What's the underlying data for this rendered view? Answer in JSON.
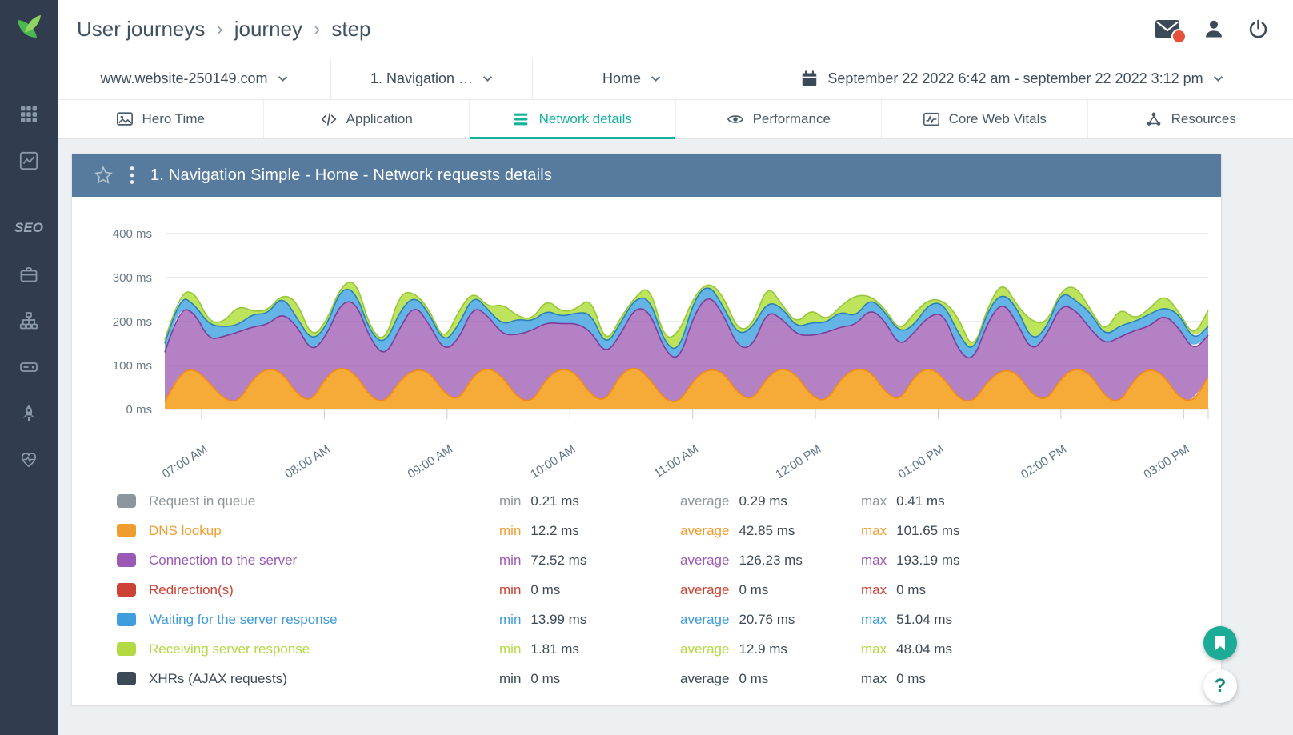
{
  "theme": {
    "accent": "#14b29b",
    "panel_header": "#567b9e",
    "sidebar_bg": "#313d4e",
    "notification": "#e8503a",
    "logo_green_dark": "#4cb851",
    "logo_green_light": "#8fd460"
  },
  "sidebar": {
    "seo_label": "SEO"
  },
  "header": {
    "breadcrumb": [
      "User journeys",
      "journey",
      "step"
    ],
    "separator": "›"
  },
  "filters": {
    "site": "www.website-250149.com",
    "step": "1. Navigation …",
    "page": "Home",
    "date_range": "September 22 2022 6:42 am - september 22 2022 3:12 pm"
  },
  "tabs": [
    {
      "label": "Hero Time",
      "active": false
    },
    {
      "label": "Application",
      "active": false
    },
    {
      "label": "Network details",
      "active": true
    },
    {
      "label": "Performance",
      "active": false
    },
    {
      "label": "Core Web Vitals",
      "active": false
    },
    {
      "label": "Resources",
      "active": false
    }
  ],
  "panel": {
    "title": "1. Navigation Simple - Home - Network requests details"
  },
  "chart_data": {
    "type": "area",
    "stacked": true,
    "title": "1. Navigation Simple - Home - Network requests details",
    "ylim": [
      0,
      400
    ],
    "y_tick_values": [
      0,
      100,
      200,
      300,
      400
    ],
    "y_ticks": [
      "0 ms",
      "100 ms",
      "200 ms",
      "300 ms",
      "400 ms"
    ],
    "x_range_minutes": [
      402,
      912
    ],
    "x_tick_minutes": [
      420,
      480,
      540,
      600,
      660,
      720,
      780,
      840,
      900
    ],
    "x_ticks": [
      "07:00 AM",
      "08:00 AM",
      "09:00 AM",
      "10:00 AM",
      "11:00 AM",
      "12:00 PM",
      "01:00 PM",
      "02:00 PM",
      "03:00 PM"
    ],
    "grid": true,
    "legend_position": "bottom",
    "series": [
      {
        "name": "DNS lookup",
        "color": "#f5a62e",
        "stroke": "#ef8a12",
        "opacity": 0.95,
        "values": [
          18,
          82,
          94,
          62,
          24,
          16,
          70,
          95,
          84,
          34,
          17,
          76,
          98,
          80,
          28,
          15,
          66,
          92,
          86,
          38,
          19,
          78,
          97,
          74,
          26,
          16,
          72,
          95,
          82,
          32,
          18,
          80,
          99,
          70,
          22,
          15,
          68,
          93,
          85,
          36,
          20,
          74,
          96,
          78,
          30,
          17,
          70,
          94,
          88,
          40,
          18,
          76,
          97,
          72,
          24,
          16,
          64,
          91,
          83,
          34,
          19,
          72,
          96,
          80,
          28,
          15,
          70,
          95,
          77,
          26,
          17,
          74
        ]
      },
      {
        "name": "Connection to the server",
        "color": "#a05eb5",
        "stroke": "#7d3c98",
        "opacity": 0.78,
        "values": [
          112,
          150,
          128,
          96,
          142,
          160,
          118,
          98,
          136,
          156,
          112,
          92,
          146,
          166,
          130,
          104,
          120,
          148,
          108,
          94,
          140,
          158,
          116,
          96,
          144,
          164,
          126,
          100,
          114,
          146,
          106,
          90,
          134,
          154,
          112,
          94,
          148,
          170,
          132,
          104,
          122,
          152,
          110,
          92,
          138,
          158,
          118,
          98,
          142,
          162,
          124,
          100,
          116,
          148,
          108,
          92,
          136,
          156,
          114,
          96,
          150,
          168,
          130,
          102,
          120,
          150,
          110,
          94,
          140,
          160,
          115,
          95
        ]
      },
      {
        "name": "Waiting for the server response",
        "color": "#4aa7e4",
        "stroke": "#2980b9",
        "opacity": 0.85,
        "values": [
          20,
          28,
          18,
          35,
          22,
          16,
          30,
          24,
          40,
          18,
          26,
          20,
          34,
          22,
          16,
          28,
          38,
          20,
          24,
          18,
          32,
          26,
          14,
          22,
          36,
          20,
          28,
          16,
          24,
          42,
          18,
          26,
          20,
          30,
          16,
          22,
          34,
          24,
          18,
          28,
          44,
          20,
          26,
          16,
          30,
          22,
          36,
          18,
          24,
          20,
          32,
          16,
          28,
          22,
          40,
          18,
          26,
          20,
          34,
          24,
          16,
          30,
          22,
          38,
          18,
          26,
          20,
          28,
          16,
          32,
          24,
          20
        ]
      },
      {
        "name": "Receiving server response",
        "color": "#b7e04b",
        "stroke": "#94c836",
        "opacity": 0.9,
        "values": [
          8,
          4,
          30,
          6,
          10,
          45,
          5,
          8,
          3,
          38,
          6,
          12,
          4,
          28,
          8,
          5,
          42,
          6,
          10,
          3,
          34,
          8,
          5,
          48,
          6,
          4,
          26,
          10,
          8,
          36,
          5,
          12,
          3,
          30,
          6,
          44,
          8,
          4,
          24,
          10,
          5,
          40,
          6,
          8,
          32,
          4,
          12,
          50,
          5,
          8,
          3,
          28,
          10,
          6,
          38,
          4,
          8,
          26,
          5,
          46,
          10,
          3,
          34,
          6,
          8,
          42,
          4,
          12,
          30,
          5,
          8,
          36
        ]
      }
    ]
  },
  "legend": {
    "min_label": "min",
    "avg_label": "average",
    "max_label": "max",
    "rows": [
      {
        "name": "Request in queue",
        "color": "#8d969c",
        "min": "0.21 ms",
        "average": "0.29 ms",
        "max": "0.41 ms"
      },
      {
        "name": "DNS lookup",
        "color": "#f09d2f",
        "min": "12.2 ms",
        "average": "42.85 ms",
        "max": "101.65 ms"
      },
      {
        "name": "Connection to the server",
        "color": "#9b59b6",
        "min": "72.52 ms",
        "average": "126.23 ms",
        "max": "193.19 ms"
      },
      {
        "name": "Redirection(s)",
        "color": "#cb4335",
        "min": "0 ms",
        "average": "0 ms",
        "max": "0 ms"
      },
      {
        "name": "Waiting for the server response",
        "color": "#3f9ddb",
        "min": "13.99 ms",
        "average": "20.76 ms",
        "max": "51.04 ms"
      },
      {
        "name": "Receiving server response",
        "color": "#b3d943",
        "min": "1.81 ms",
        "average": "12.9 ms",
        "max": "48.04 ms"
      },
      {
        "name": "XHRs (AJAX requests)",
        "color": "#3c4a57",
        "min": "0 ms",
        "average": "0 ms",
        "max": "0 ms"
      }
    ]
  },
  "floating": {
    "help_label": "?"
  }
}
